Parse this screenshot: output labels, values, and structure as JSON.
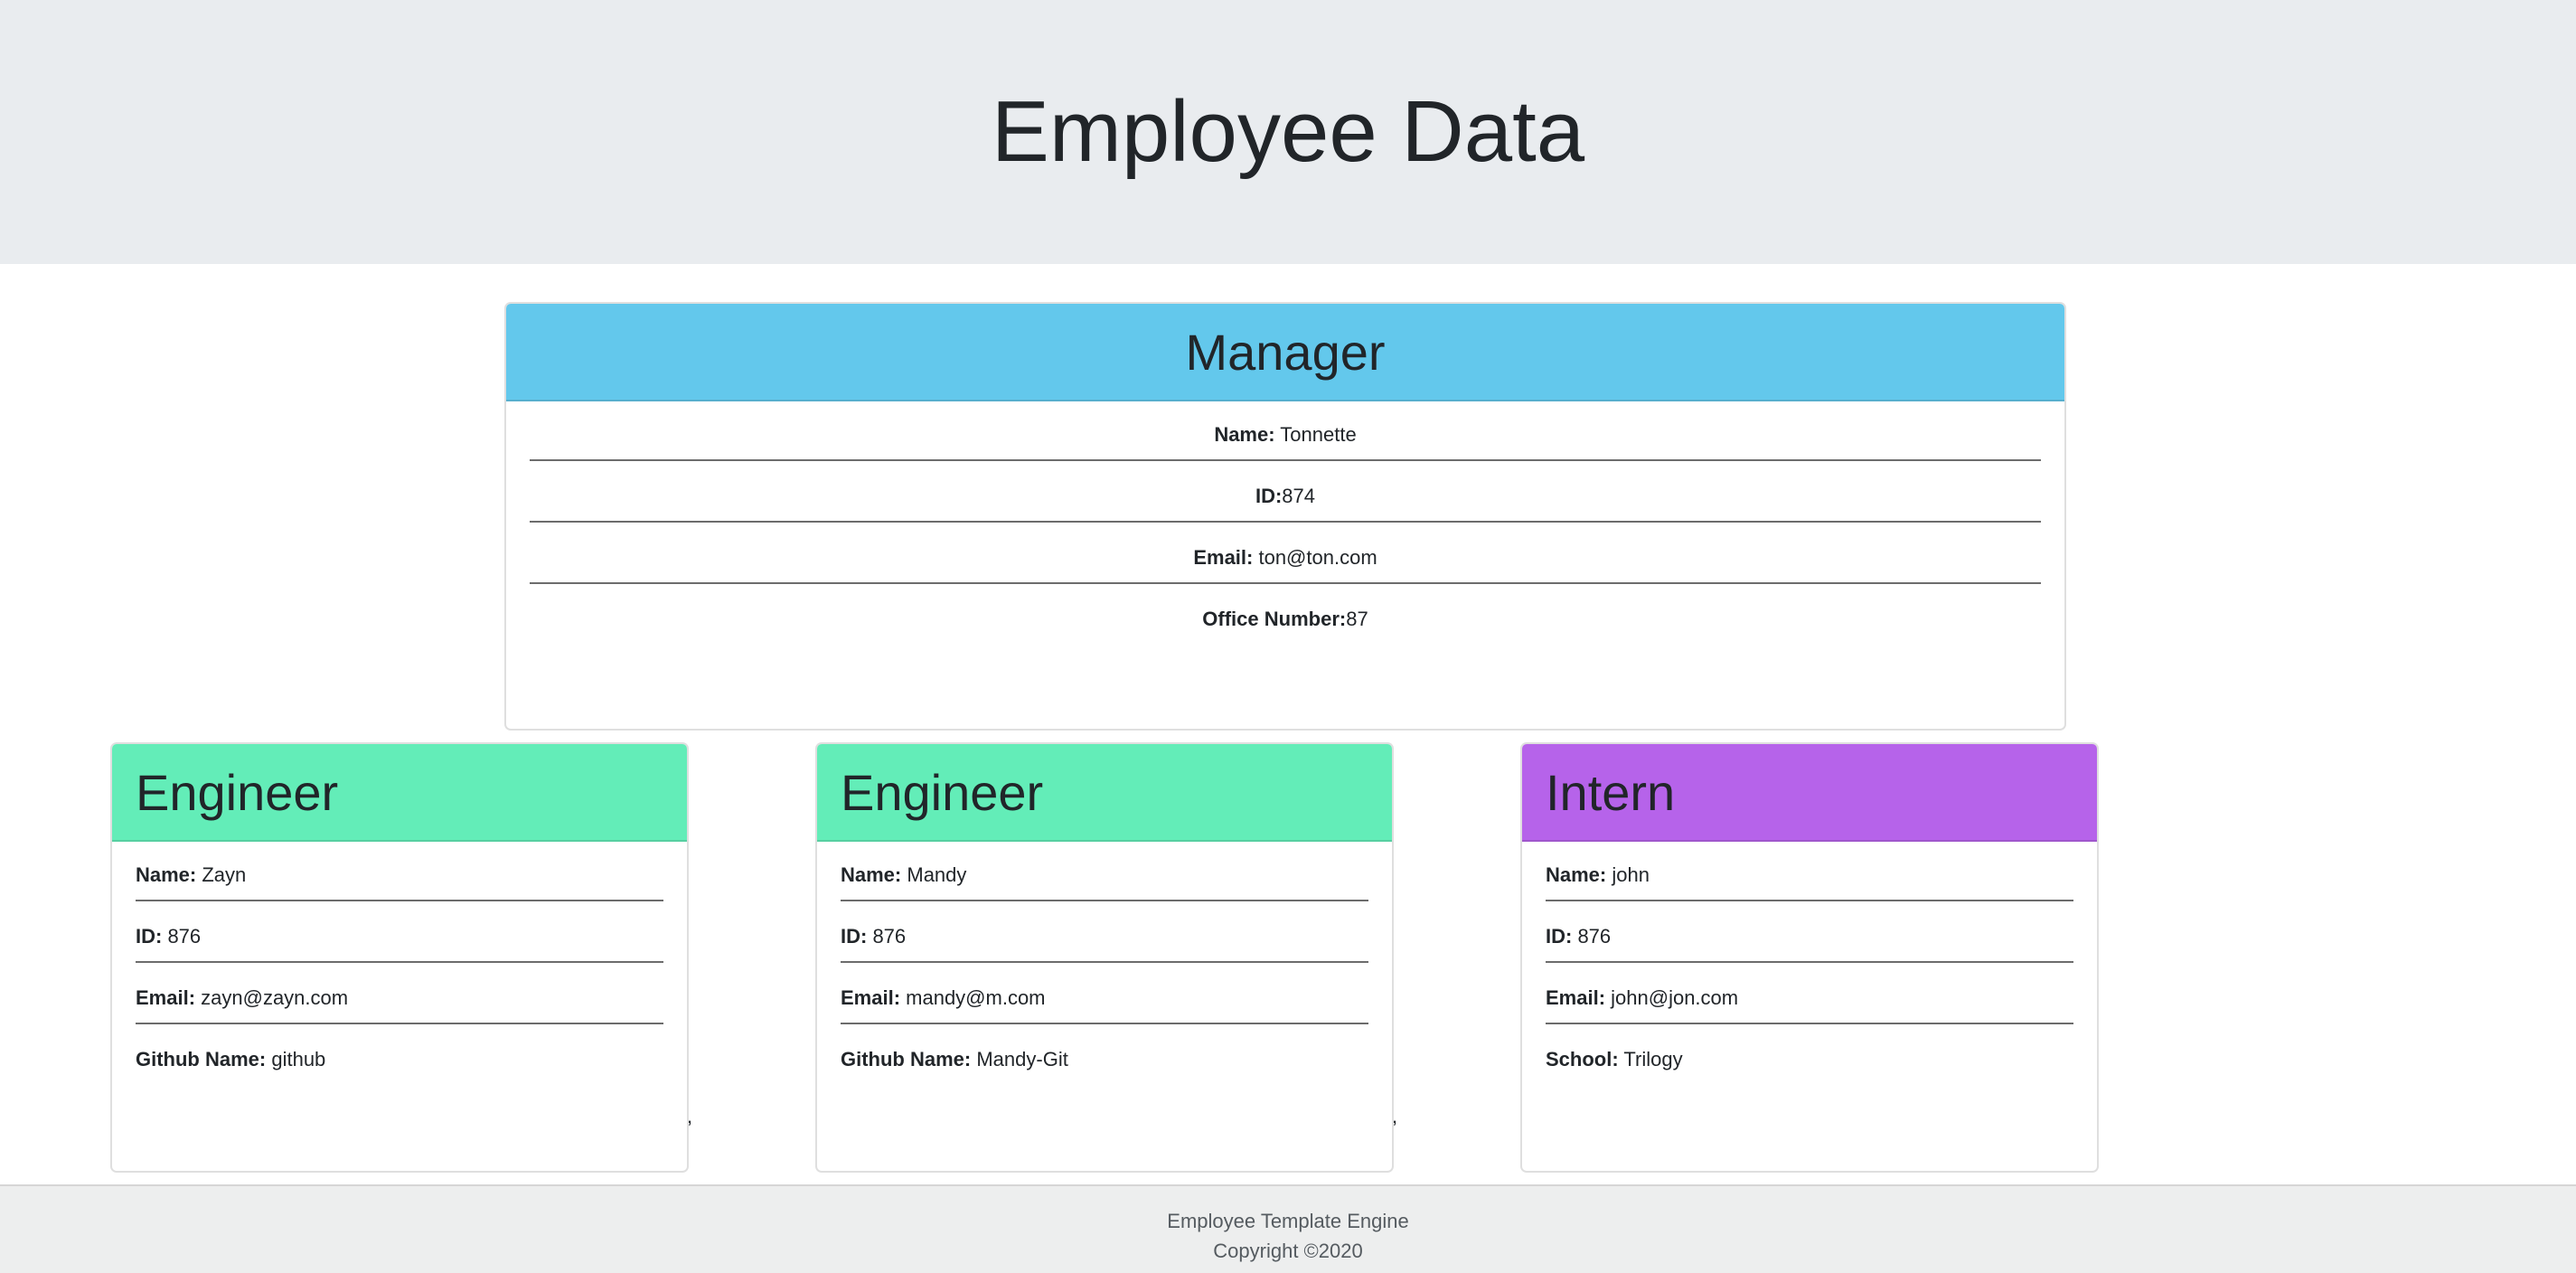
{
  "header": {
    "title": "Employee Data"
  },
  "manager": {
    "role": "Manager",
    "rows": [
      {
        "label": "Name:",
        "value": " Tonnette"
      },
      {
        "label": "ID:",
        "value": "874"
      },
      {
        "label": "Email:",
        "value": " ton@ton.com"
      },
      {
        "label": "Office Number:",
        "value": "87"
      }
    ]
  },
  "cards": [
    {
      "role": "Engineer",
      "rows": [
        {
          "label": "Name:",
          "value": " Zayn"
        },
        {
          "label": "ID:",
          "value": " 876"
        },
        {
          "label": "Email:",
          "value": " zayn@zayn.com"
        },
        {
          "label": "Github Name:",
          "value": " github"
        }
      ]
    },
    {
      "role": "Engineer",
      "rows": [
        {
          "label": "Name:",
          "value": " Mandy"
        },
        {
          "label": "ID:",
          "value": " 876"
        },
        {
          "label": "Email:",
          "value": " mandy@m.com"
        },
        {
          "label": "Github Name:",
          "value": " Mandy-Git"
        }
      ]
    },
    {
      "role": "Intern",
      "rows": [
        {
          "label": "Name:",
          "value": " john"
        },
        {
          "label": "ID:",
          "value": " 876"
        },
        {
          "label": "Email:",
          "value": " john@jon.com"
        },
        {
          "label": "School:",
          "value": " Trilogy"
        }
      ]
    }
  ],
  "stray_commas": [
    ",",
    ","
  ],
  "footer": {
    "line1": "Employee Template Engine",
    "line2": "Copyright ©2020"
  },
  "colors": {
    "manager_header": "#63c8ec",
    "engineer_header": "#63edb8",
    "intern_header": "#b663ea",
    "jumbotron": "#e9ecef"
  }
}
